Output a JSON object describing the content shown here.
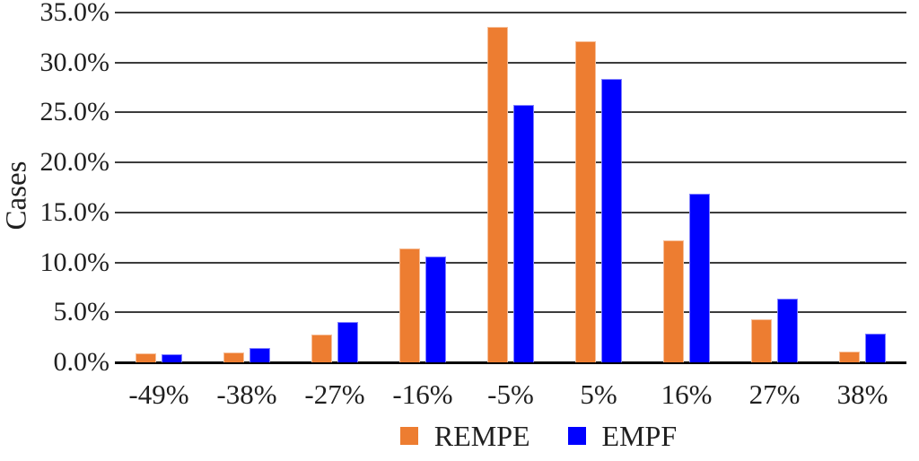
{
  "chart_data": {
    "type": "bar",
    "title": "",
    "xlabel": "",
    "ylabel": "Cases",
    "categories": [
      "-49%",
      "-38%",
      "-27%",
      "-16%",
      "-5%",
      "5%",
      "16%",
      "27%",
      "38%"
    ],
    "series": [
      {
        "name": "REMPE",
        "color": "#ED7D31",
        "values": [
          0.9,
          1.0,
          2.8,
          11.4,
          33.6,
          32.1,
          12.2,
          4.3,
          1.1
        ]
      },
      {
        "name": "EMPF",
        "color": "#0000FF",
        "values": [
          0.8,
          1.4,
          4.0,
          10.6,
          25.8,
          28.4,
          16.9,
          6.4,
          2.9
        ]
      }
    ],
    "ylim": [
      0,
      35
    ],
    "ytick_step": 5,
    "ytick_labels": [
      "0.0%",
      "5.0%",
      "10.0%",
      "15.0%",
      "20.0%",
      "25.0%",
      "30.0%",
      "35.0%"
    ],
    "grid": "horizontal",
    "legend_position": "bottom",
    "colors": {
      "gridline": "#3c3c3c",
      "axis": "#000000",
      "text": "#1f1f1f"
    }
  }
}
